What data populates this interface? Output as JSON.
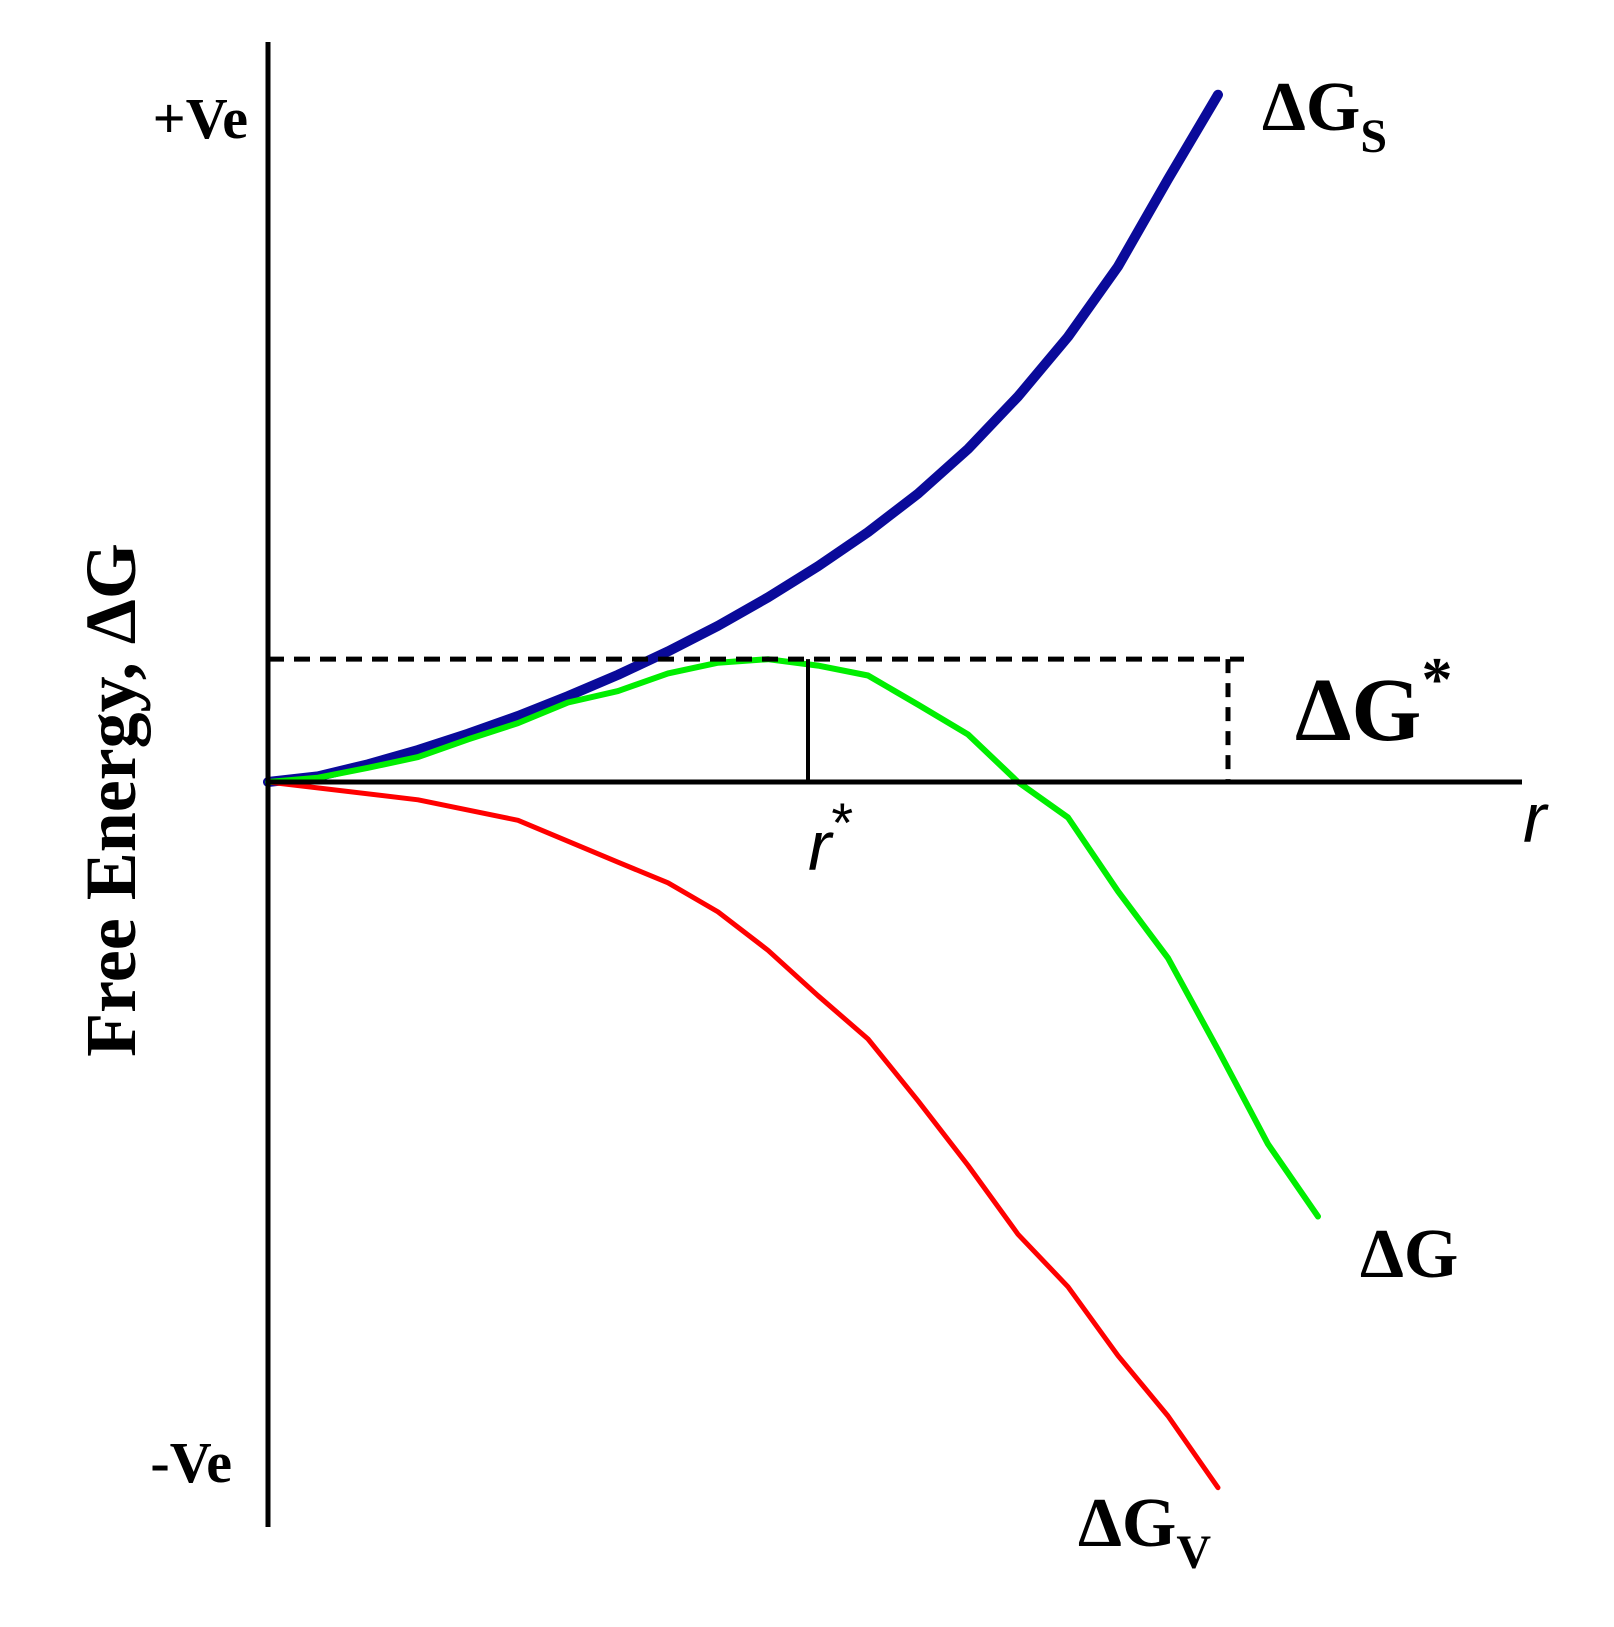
{
  "chart_data": {
    "type": "line",
    "ylabel": "Free Energy, ΔG",
    "xlabel": "r",
    "y_ticks": {
      "positive": "+Ve",
      "negative": "-Ve"
    },
    "xlim": [
      0,
      1.2
    ],
    "ylim": [
      -1.0,
      1.0
    ],
    "grid": false,
    "colors": {
      "surface": "#0a0a9a",
      "volume": "#ff0000",
      "total": "#00ee00",
      "axis": "#000000"
    },
    "series": [
      {
        "name": "ΔG",
        "sub": "S",
        "color_key": "surface",
        "x": [
          0,
          0.05,
          0.1,
          0.15,
          0.2,
          0.25,
          0.3,
          0.35,
          0.4,
          0.45,
          0.5,
          0.55,
          0.6,
          0.65,
          0.7,
          0.75,
          0.8,
          0.85,
          0.9,
          0.95
        ],
        "y": [
          0,
          0.008,
          0.025,
          0.045,
          0.068,
          0.093,
          0.121,
          0.151,
          0.184,
          0.22,
          0.26,
          0.304,
          0.352,
          0.406,
          0.469,
          0.543,
          0.627,
          0.726,
          0.849,
          0.968
        ]
      },
      {
        "name": "ΔG",
        "sub": "V",
        "color_key": "volume",
        "x": [
          0,
          0.15,
          0.25,
          0.35,
          0.4,
          0.45,
          0.5,
          0.55,
          0.6,
          0.65,
          0.7,
          0.75,
          0.8,
          0.85,
          0.9,
          0.95
        ],
        "y": [
          0,
          -0.025,
          -0.054,
          -0.113,
          -0.142,
          -0.183,
          -0.237,
          -0.301,
          -0.362,
          -0.449,
          -0.54,
          -0.637,
          -0.711,
          -0.808,
          -0.893,
          -0.994
        ]
      },
      {
        "name": "ΔG",
        "sub": "",
        "color_key": "total",
        "x": [
          0,
          0.05,
          0.1,
          0.15,
          0.2,
          0.25,
          0.3,
          0.35,
          0.4,
          0.45,
          0.5,
          0.55,
          0.6,
          0.65,
          0.7,
          0.75,
          0.8,
          0.85,
          0.9,
          0.95,
          1.0,
          1.05
        ],
        "y": [
          0,
          0.006,
          0.02,
          0.035,
          0.06,
          0.083,
          0.112,
          0.128,
          0.153,
          0.168,
          0.173,
          0.164,
          0.15,
          0.109,
          0.067,
          0.0,
          -0.05,
          -0.154,
          -0.248,
          -0.377,
          -0.51,
          -0.612
        ]
      }
    ],
    "annotations": {
      "critical_radius": {
        "label": "r",
        "sup": "*",
        "x": 0.54,
        "y": 0.173
      },
      "barrier": {
        "label": "ΔG",
        "sup": "*",
        "x": 0.96
      },
      "axis_r": {
        "label": "r"
      }
    }
  }
}
